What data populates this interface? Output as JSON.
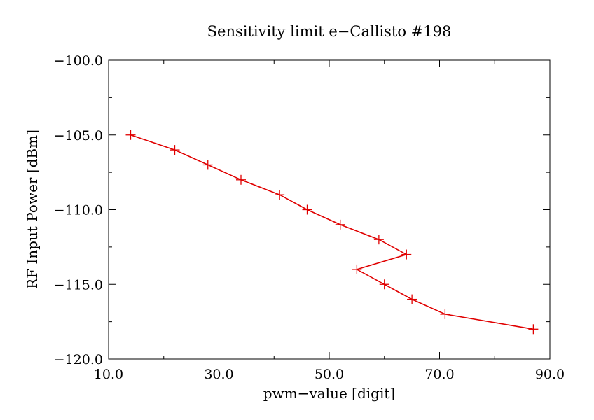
{
  "chart_data": {
    "type": "line",
    "title": "Sensitivity limit e−Callisto #198",
    "xlabel": "pwm−value [digit]",
    "ylabel": "RF Input Power [dBm]",
    "xlim": [
      10.0,
      90.0
    ],
    "ylim": [
      -120.0,
      -100.0
    ],
    "x_ticks": [
      "10.0",
      "30.0",
      "50.0",
      "70.0",
      "90.0"
    ],
    "y_ticks": [
      "−100.0",
      "−105.0",
      "−110.0",
      "−115.0",
      "−120.0"
    ],
    "grid": false,
    "marker": "plus",
    "line_color": "#e00000",
    "points": [
      {
        "x": 14,
        "y": -105
      },
      {
        "x": 22,
        "y": -106
      },
      {
        "x": 28,
        "y": -107
      },
      {
        "x": 34,
        "y": -108
      },
      {
        "x": 41,
        "y": -109
      },
      {
        "x": 46,
        "y": -110
      },
      {
        "x": 52,
        "y": -111
      },
      {
        "x": 59,
        "y": -112
      },
      {
        "x": 64,
        "y": -113
      },
      {
        "x": 55,
        "y": -114
      },
      {
        "x": 60,
        "y": -115
      },
      {
        "x": 65,
        "y": -116
      },
      {
        "x": 71,
        "y": -117
      },
      {
        "x": 87,
        "y": -118
      }
    ]
  }
}
